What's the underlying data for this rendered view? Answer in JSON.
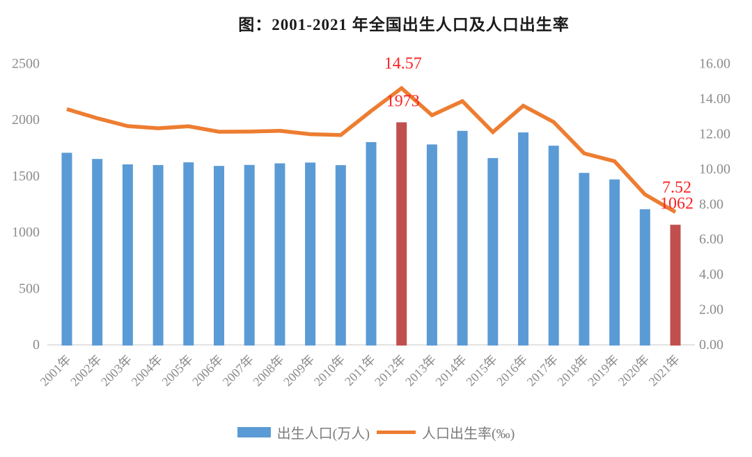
{
  "chart_data": {
    "type": "bar",
    "combo": "bar+line dual axis",
    "title": "图：2001-2021 年全国出生人口及人口出生率",
    "categories": [
      "2001年",
      "2002年",
      "2003年",
      "2004年",
      "2005年",
      "2006年",
      "2007年",
      "2008年",
      "2009年",
      "2010年",
      "2011年",
      "2012年",
      "2013年",
      "2014年",
      "2015年",
      "2016年",
      "2017年",
      "2018年",
      "2019年",
      "2020年",
      "2021年"
    ],
    "series": [
      {
        "name": "出生人口(万人)",
        "type": "bar",
        "axis": "left",
        "values": [
          1702,
          1647,
          1599,
          1593,
          1617,
          1585,
          1594,
          1608,
          1615,
          1592,
          1797,
          1973,
          1776,
          1897,
          1655,
          1883,
          1765,
          1523,
          1465,
          1200,
          1062
        ],
        "highlight_indices": [
          11,
          20
        ]
      },
      {
        "name": "人口出生率(‰)",
        "type": "line",
        "axis": "right",
        "values": [
          13.38,
          12.86,
          12.41,
          12.29,
          12.4,
          12.09,
          12.1,
          12.14,
          11.95,
          11.9,
          13.27,
          14.57,
          13.03,
          13.83,
          12.07,
          13.57,
          12.64,
          10.86,
          10.41,
          8.52,
          7.52
        ]
      }
    ],
    "left_axis": {
      "min": 0,
      "max": 2500,
      "step": 500,
      "ticks": [
        "0",
        "500",
        "1000",
        "1500",
        "2000",
        "2500"
      ]
    },
    "right_axis": {
      "min": 0,
      "max": 16,
      "step": 2,
      "ticks": [
        "0.00",
        "2.00",
        "4.00",
        "6.00",
        "8.00",
        "10.00",
        "12.00",
        "14.00",
        "16.00"
      ]
    },
    "annotations": [
      {
        "text": "14.57",
        "category": "2012年",
        "index": 11,
        "target": "line"
      },
      {
        "text": "1973",
        "category": "2012年",
        "index": 11,
        "target": "bar"
      },
      {
        "text": "7.52",
        "category": "2021年",
        "index": 20,
        "target": "line"
      },
      {
        "text": "1062",
        "category": "2021年",
        "index": 20,
        "target": "bar"
      }
    ],
    "colors": {
      "bar": "#5b9bd5",
      "bar_highlight": "#c0504d",
      "line": "#ed7d31",
      "annotation": "#fb2323",
      "axis_text": "#8c8c8c",
      "baseline": "#d9d9d9"
    },
    "grid": false,
    "legend_position": "bottom"
  }
}
